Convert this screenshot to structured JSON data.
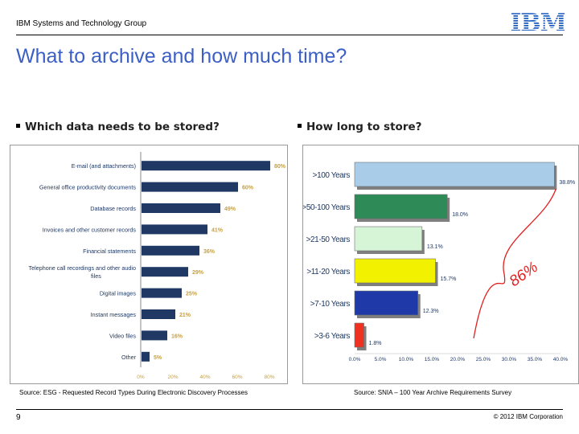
{
  "header": {
    "org": "IBM Systems and Technology Group",
    "logo_text": "IBM"
  },
  "title": "What to archive and how much time?",
  "left_panel": {
    "bullet": "Which data needs to be stored?",
    "source": "Source: ESG - Requested Record Types During Electronic Discovery Processes",
    "chart_data": {
      "type": "bar",
      "orientation": "horizontal",
      "categories": [
        "E-mail (and attachments)",
        "General office productivity documents",
        "Database records",
        "Invoices and other customer records",
        "Financial statements",
        "Telephone call recordings and other audio files",
        "Digital images",
        "Instant messages",
        "Video files",
        "Other"
      ],
      "values": [
        80,
        60,
        49,
        41,
        36,
        29,
        25,
        21,
        16,
        5
      ],
      "value_labels": [
        "80%",
        "60%",
        "49%",
        "41%",
        "36%",
        "29%",
        "25%",
        "21%",
        "16%",
        "5%"
      ],
      "x_ticks": [
        "0%",
        "20%",
        "40%",
        "60%",
        "80%"
      ],
      "xlim": [
        0,
        80
      ],
      "color": "#1f3864",
      "label_color": "#c8a03c"
    }
  },
  "right_panel": {
    "bullet": "How long to store?",
    "source": "Source: SNIA – 100 Year Archive Requirements Survey",
    "chart_data": {
      "type": "bar",
      "orientation": "horizontal",
      "categories": [
        ">100 Years",
        ">50-100 Years",
        ">21-50 Years",
        ">11-20 Years",
        ">7-10 Years",
        ">3-6 Years"
      ],
      "values": [
        38.8,
        18.0,
        13.1,
        15.7,
        12.3,
        1.8
      ],
      "value_labels": [
        "38.8%",
        "18.0%",
        "13.1%",
        "15.7%",
        "12.3%",
        "1.8%"
      ],
      "colors": [
        "#a9cce8",
        "#2e8b57",
        "#d6f5d6",
        "#f2f200",
        "#1f3aa8",
        "#f03020"
      ],
      "x_ticks": [
        "0.0%",
        "5.0%",
        "10.0%",
        "15.0%",
        "20.0%",
        "25.0%",
        "30.0%",
        "35.0%",
        "40.0%"
      ],
      "xlim": [
        0,
        40
      ],
      "annotation": "86%"
    }
  },
  "footer": {
    "page_number": "9",
    "copyright": "© 2012 IBM Corporation"
  }
}
